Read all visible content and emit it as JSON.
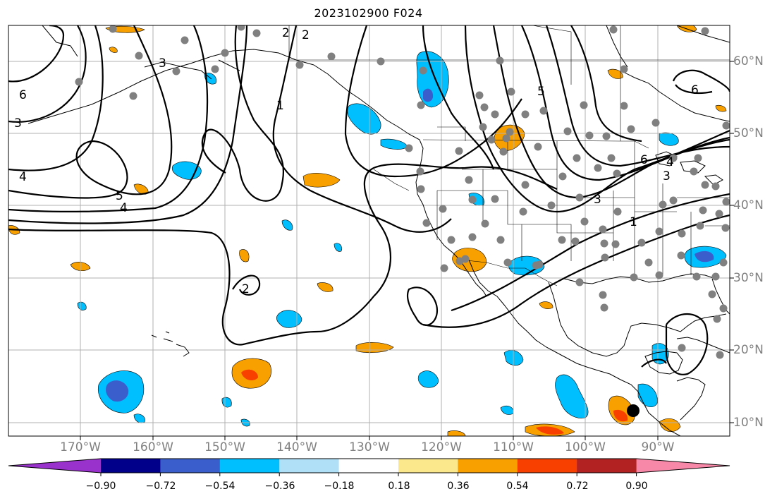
{
  "title": "2023102900 F024",
  "lat_labels": [
    "60°N",
    "50°N",
    "40°N",
    "30°N",
    "20°N",
    "10°N"
  ],
  "lon_labels": [
    "170°W",
    "160°W",
    "150°W",
    "140°W",
    "130°W",
    "120°W",
    "110°W",
    "100°W",
    "90°W"
  ],
  "contour_labels": [
    "6",
    "3",
    "4",
    "5",
    "4",
    "3",
    "2",
    "2",
    "1",
    "2",
    "3",
    "6",
    "5",
    "6",
    "4",
    "3",
    "1"
  ],
  "colorbar": {
    "ticks": [
      "−0.90",
      "−0.72",
      "−0.54",
      "−0.36",
      "−0.18",
      "0.18",
      "0.36",
      "0.54",
      "0.72",
      "0.90"
    ],
    "colors": [
      "#9932cc",
      "#00008b",
      "#3a5fcd",
      "#00bfff",
      "#b0e0f8",
      "#ffffff",
      "#fbe88c",
      "#f8a000",
      "#f84000",
      "#b22222",
      "#f888a8"
    ]
  },
  "colors": {
    "grid": "#b0b0b0",
    "coast": "#000000",
    "station": "#808080",
    "contour": "#000000"
  }
}
